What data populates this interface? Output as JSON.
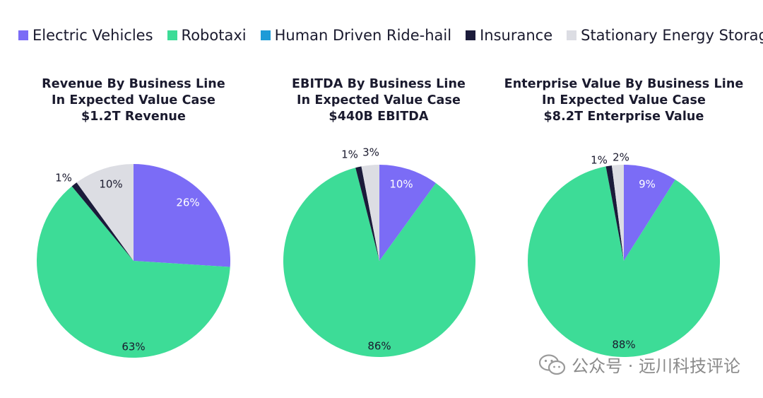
{
  "colors": {
    "Electric Vehicles": "#7B6CF6",
    "Robotaxi": "#3DDC97",
    "Human Driven Ride-hail": "#1E9BD7",
    "Insurance": "#1B1B3A",
    "Stationary Energy Storage": "#DCDDE3"
  },
  "legend": [
    {
      "label": "Electric Vehicles",
      "color": "#7B6CF6"
    },
    {
      "label": "Robotaxi",
      "color": "#3DDC97"
    },
    {
      "label": "Human Driven Ride-hail",
      "color": "#1E9BD7"
    },
    {
      "label": "Insurance",
      "color": "#1B1B3A"
    },
    {
      "label": "Stationary Energy Storage",
      "color": "#DCDDE3"
    }
  ],
  "chart_data": [
    {
      "type": "pie",
      "title": [
        "Revenue By Business Line",
        "In Expected Value Case",
        "$1.2T Revenue"
      ],
      "slices": [
        {
          "name": "Electric Vehicles",
          "value": 26,
          "label": "26%"
        },
        {
          "name": "Robotaxi",
          "value": 63,
          "label": "63%"
        },
        {
          "name": "Insurance",
          "value": 1,
          "label": "1%"
        },
        {
          "name": "Stationary Energy Storage",
          "value": 10,
          "label": "10%"
        }
      ]
    },
    {
      "type": "pie",
      "title": [
        "EBITDA By Business Line",
        "In Expected Value Case",
        "$440B EBITDA"
      ],
      "slices": [
        {
          "name": "Electric Vehicles",
          "value": 10,
          "label": "10%"
        },
        {
          "name": "Robotaxi",
          "value": 86,
          "label": "86%"
        },
        {
          "name": "Insurance",
          "value": 1,
          "label": "1%"
        },
        {
          "name": "Stationary Energy Storage",
          "value": 3,
          "label": "3%"
        }
      ]
    },
    {
      "type": "pie",
      "title": [
        "Enterprise Value By Business Line",
        "In Expected Value Case",
        "$8.2T Enterprise Value"
      ],
      "slices": [
        {
          "name": "Electric Vehicles",
          "value": 9,
          "label": "9%"
        },
        {
          "name": "Robotaxi",
          "value": 88,
          "label": "88%"
        },
        {
          "name": "Insurance",
          "value": 1,
          "label": "1%"
        },
        {
          "name": "Stationary Energy Storage",
          "value": 2,
          "label": "2%"
        }
      ]
    }
  ],
  "watermark": {
    "text": "公众号 · 远川科技评论",
    "icon": "wechat-icon"
  }
}
